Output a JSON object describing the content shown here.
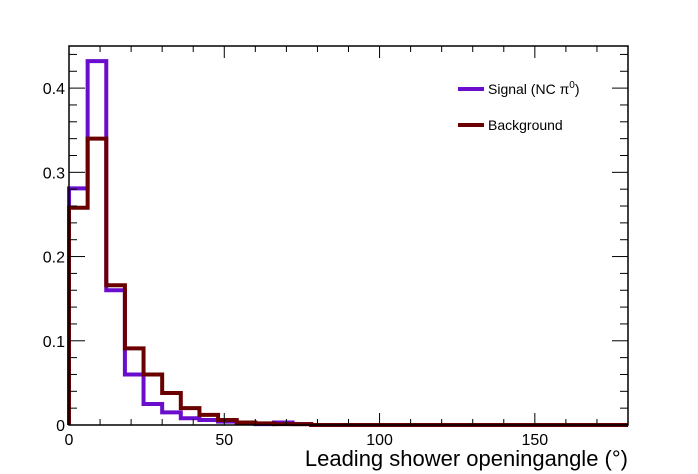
{
  "chart_data": {
    "type": "histogram",
    "xlabel": "Leading shower openingangle (°)",
    "ylabel": "",
    "xlim": [
      0,
      180
    ],
    "ylim": [
      0,
      0.45
    ],
    "grid": false,
    "legend_placement": "top-right",
    "bin_width": 6,
    "bin_edges": [
      0,
      6,
      12,
      18,
      24,
      30,
      36,
      42,
      48,
      54,
      60,
      66,
      72,
      78,
      84,
      90,
      96,
      102,
      108,
      114,
      120,
      126,
      132,
      138,
      144,
      150,
      156,
      162,
      168,
      174,
      180
    ],
    "x_ticks": [
      0,
      50,
      100,
      150
    ],
    "x_tick_labels": [
      "0",
      "50",
      "100",
      "150"
    ],
    "y_ticks": [
      0,
      0.1,
      0.2,
      0.3,
      0.4
    ],
    "y_tick_labels": [
      "0",
      "0.1",
      "0.2",
      "0.3",
      "0.4"
    ],
    "series": [
      {
        "name": "Signal (NC π⁰)",
        "name_main": "Signal (NC π",
        "name_sup": "0",
        "name_close": ")",
        "color": "#6a0dcc",
        "values": [
          0.281,
          0.432,
          0.16,
          0.06,
          0.025,
          0.015,
          0.008,
          0.006,
          0.004,
          0.002,
          0.001,
          0.003,
          0.001,
          0,
          0,
          0,
          0,
          0,
          0,
          0,
          0,
          0,
          0,
          0,
          0,
          0,
          0,
          0,
          0,
          0
        ]
      },
      {
        "name": "Background",
        "color": "#6b0000",
        "values": [
          0.258,
          0.34,
          0.166,
          0.091,
          0.06,
          0.038,
          0.02,
          0.012,
          0.006,
          0.003,
          0.002,
          0.001,
          0.001,
          0,
          0,
          0,
          0,
          0,
          0,
          0,
          0,
          0,
          0,
          0,
          0,
          0,
          0,
          0,
          0,
          0
        ]
      }
    ]
  }
}
